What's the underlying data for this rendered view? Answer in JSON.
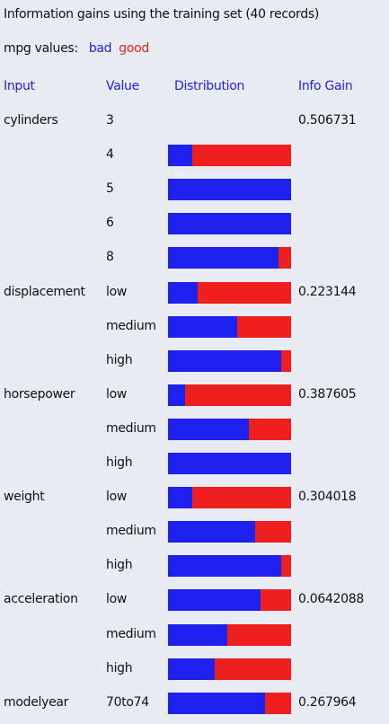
{
  "title": "Information gains using the training set (40 records)",
  "legend": {
    "label": "mpg values:",
    "bad": "bad",
    "good": "good"
  },
  "colors": {
    "bad": "#1f22ee",
    "good": "#ee1f1f",
    "background": "#e9ebf3"
  },
  "headers": {
    "input": "Input",
    "value": "Value",
    "distribution": "Distribution",
    "info_gain": "Info Gain"
  },
  "rows": [
    {
      "input": "cylinders",
      "value": "3",
      "bad_fraction": null,
      "info_gain": "0.506731"
    },
    {
      "input": "",
      "value": "4",
      "bad_fraction": 0.2,
      "info_gain": ""
    },
    {
      "input": "",
      "value": "5",
      "bad_fraction": 1.0,
      "info_gain": ""
    },
    {
      "input": "",
      "value": "6",
      "bad_fraction": 1.0,
      "info_gain": ""
    },
    {
      "input": "",
      "value": "8",
      "bad_fraction": 0.9,
      "info_gain": ""
    },
    {
      "input": "displacement",
      "value": "low",
      "bad_fraction": 0.24,
      "info_gain": "0.223144"
    },
    {
      "input": "",
      "value": "medium",
      "bad_fraction": 0.56,
      "info_gain": ""
    },
    {
      "input": "",
      "value": "high",
      "bad_fraction": 0.92,
      "info_gain": ""
    },
    {
      "input": "horsepower",
      "value": "low",
      "bad_fraction": 0.14,
      "info_gain": "0.387605"
    },
    {
      "input": "",
      "value": "medium",
      "bad_fraction": 0.66,
      "info_gain": ""
    },
    {
      "input": "",
      "value": "high",
      "bad_fraction": 1.0,
      "info_gain": ""
    },
    {
      "input": "weight",
      "value": "low",
      "bad_fraction": 0.2,
      "info_gain": "0.304018"
    },
    {
      "input": "",
      "value": "medium",
      "bad_fraction": 0.71,
      "info_gain": ""
    },
    {
      "input": "",
      "value": "high",
      "bad_fraction": 0.92,
      "info_gain": ""
    },
    {
      "input": "acceleration",
      "value": "low",
      "bad_fraction": 0.75,
      "info_gain": "0.0642088"
    },
    {
      "input": "",
      "value": "medium",
      "bad_fraction": 0.48,
      "info_gain": ""
    },
    {
      "input": "",
      "value": "high",
      "bad_fraction": 0.38,
      "info_gain": ""
    },
    {
      "input": "modelyear",
      "value": "70to74",
      "bad_fraction": 0.79,
      "info_gain": "0.267964"
    }
  ]
}
